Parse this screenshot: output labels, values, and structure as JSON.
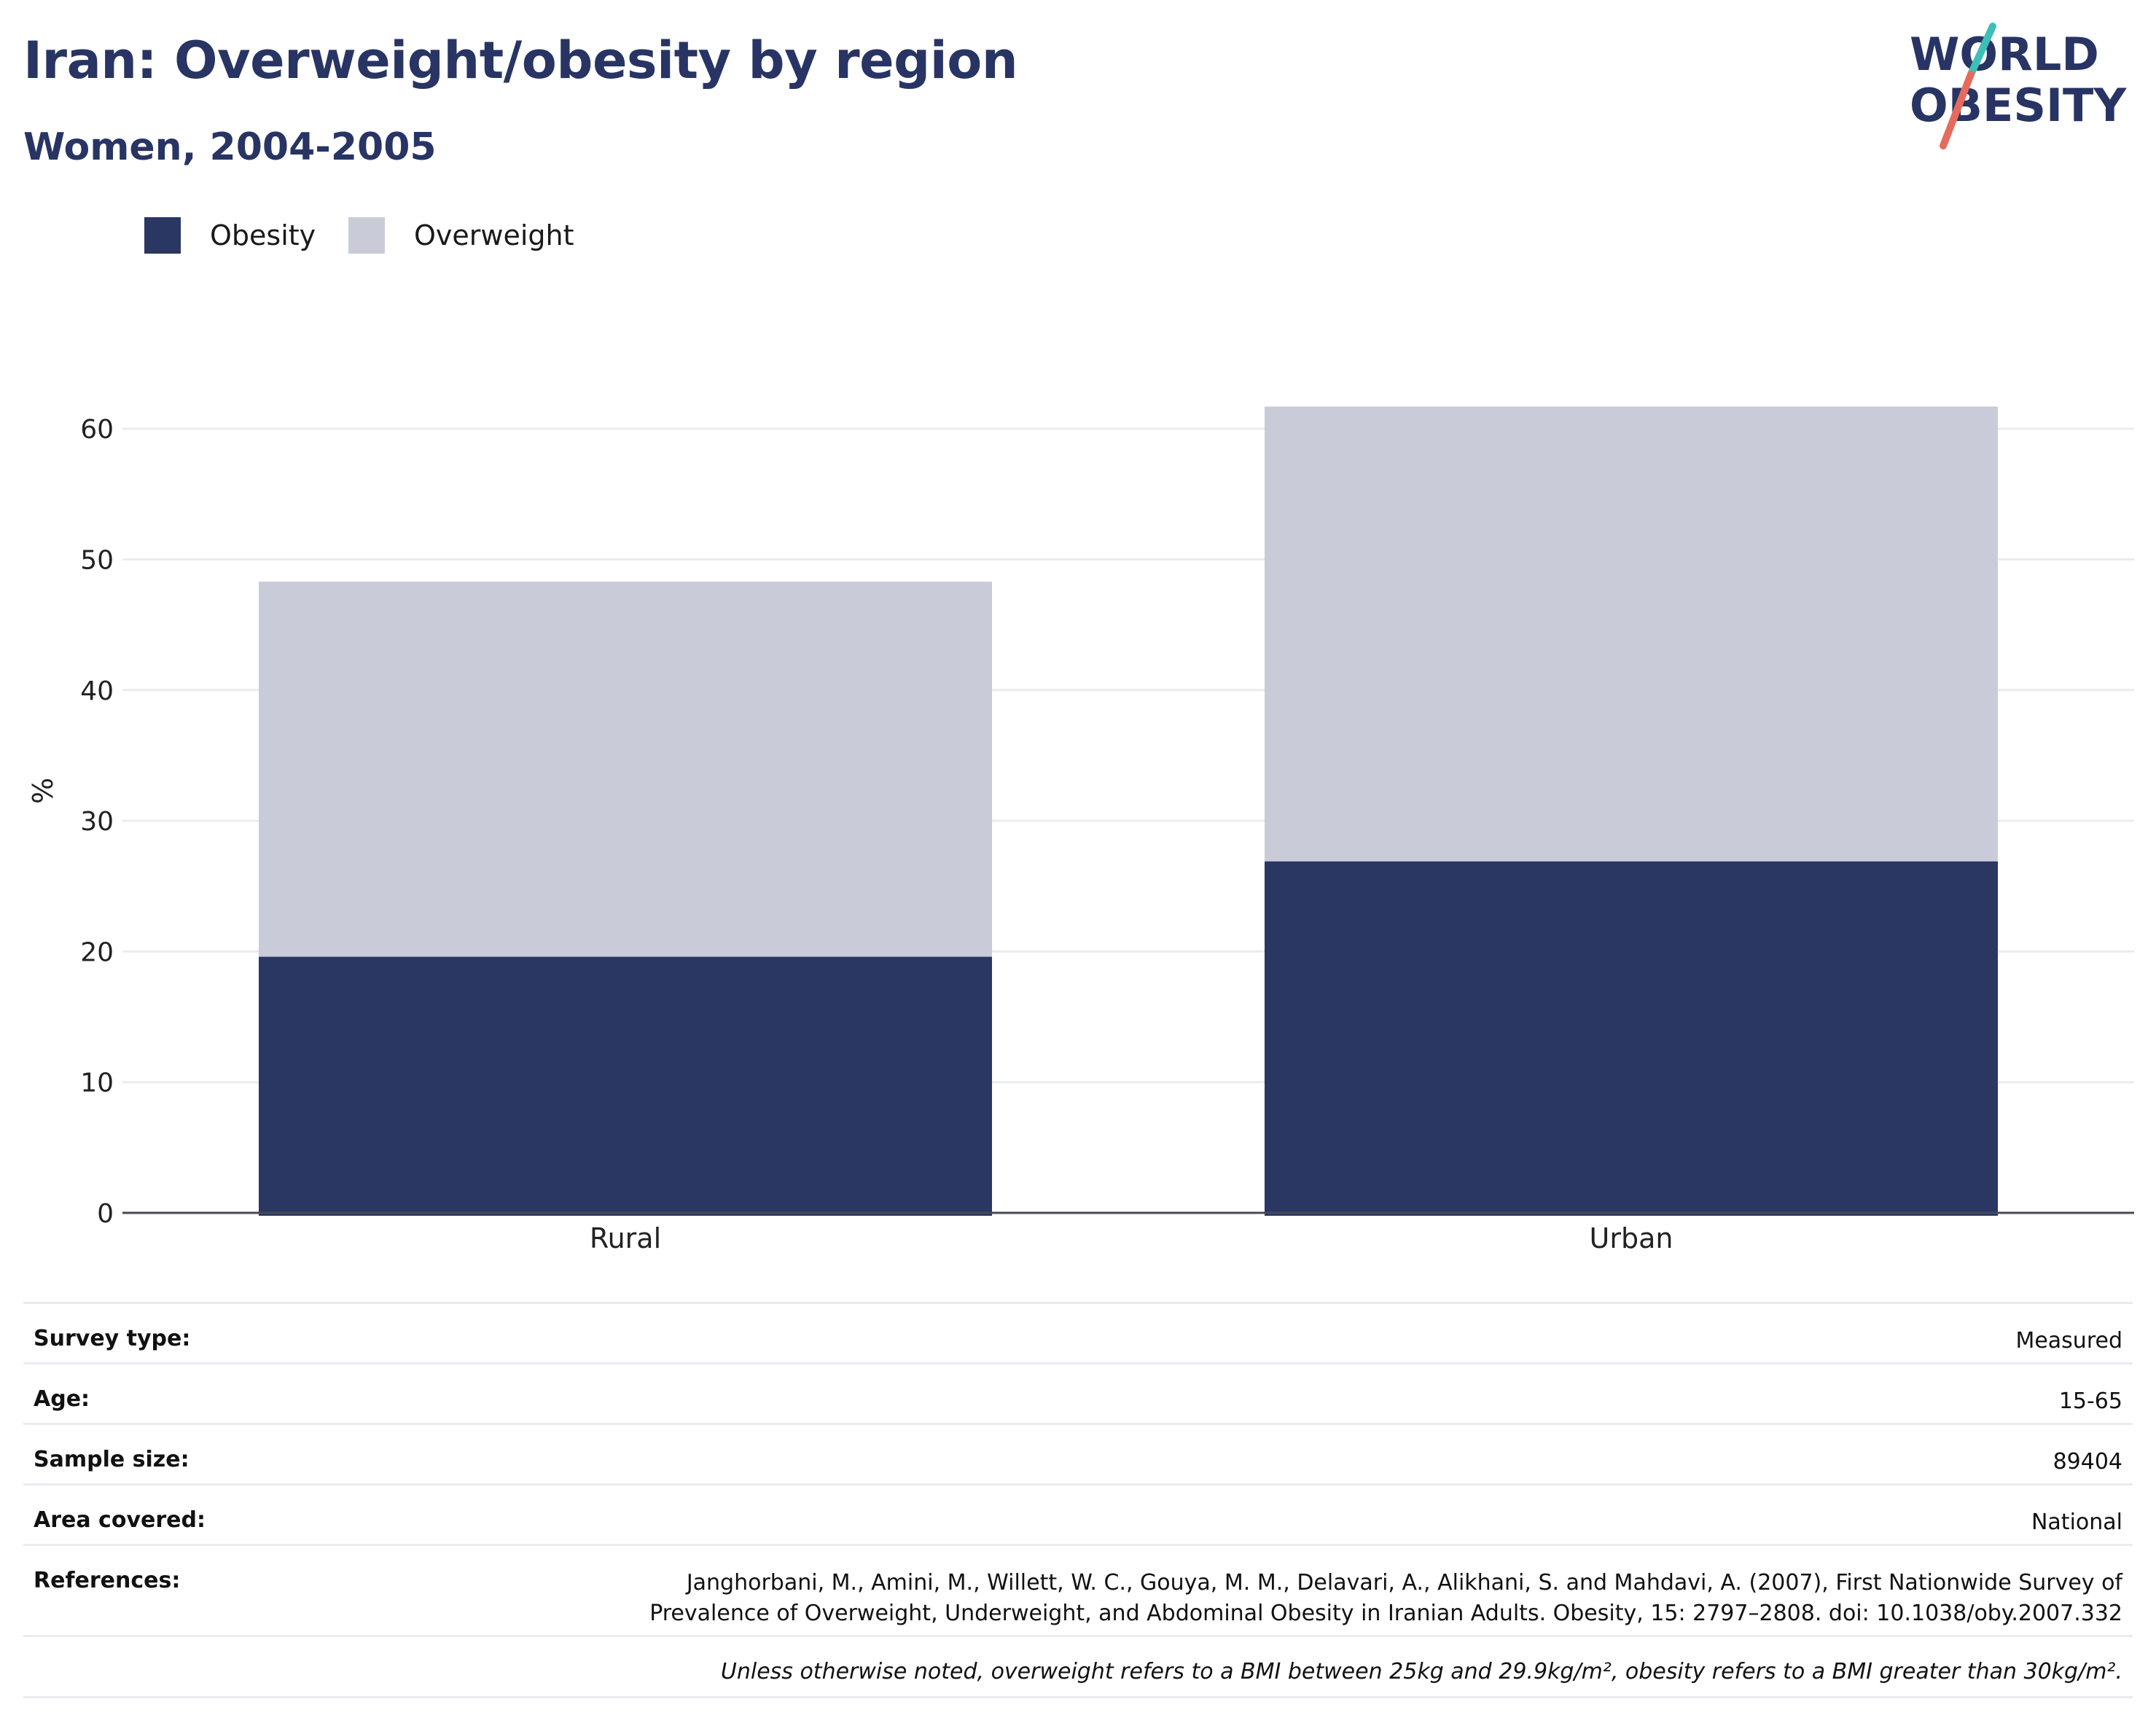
{
  "header": {
    "title": "Iran: Overweight/obesity by region",
    "subtitle": "Women, 2004-2005"
  },
  "logo": {
    "line1": "WORLD",
    "line2": "OBESITY",
    "colors": {
      "text": "#283463",
      "slash_top": "#3dbfb8",
      "slash_bottom": "#e56b5d"
    }
  },
  "legend": {
    "items": [
      {
        "label": "Obesity",
        "color": "#2a3763"
      },
      {
        "label": "Overweight",
        "color": "#c9ccd8"
      }
    ]
  },
  "chart_data": {
    "type": "bar",
    "stacked": true,
    "categories": [
      "Rural",
      "Urban"
    ],
    "series": [
      {
        "name": "Obesity",
        "color": "#2a3763",
        "values": [
          19.6,
          26.9
        ]
      },
      {
        "name": "Overweight",
        "color": "#c9ccd8",
        "values": [
          28.7,
          34.8
        ]
      }
    ],
    "ylabel": "%",
    "ylim": [
      0,
      70
    ],
    "yticks": [
      0,
      10,
      20,
      30,
      40,
      50,
      60
    ],
    "grid": true,
    "legend_position": "top-left"
  },
  "info": {
    "rows": [
      {
        "label": "Survey type:",
        "value": "Measured"
      },
      {
        "label": "Age:",
        "value": "15-65"
      },
      {
        "label": "Sample size:",
        "value": "89404"
      },
      {
        "label": "Area covered:",
        "value": "National"
      },
      {
        "label": "References:",
        "value": "Janghorbani, M., Amini, M., Willett, W. C., Gouya, M. M., Delavari, A., Alikhani, S. and Mahdavi, A. (2007), First Nationwide Survey of Prevalence of Overweight, Underweight, and Abdominal Obesity in Iranian Adults. Obesity, 15: 2797–2808. doi: 10.1038/oby.2007.332"
      }
    ],
    "note": "Unless otherwise noted, overweight refers to a BMI between 25kg and 29.9kg/m², obesity refers to a BMI greater than 30kg/m²."
  }
}
